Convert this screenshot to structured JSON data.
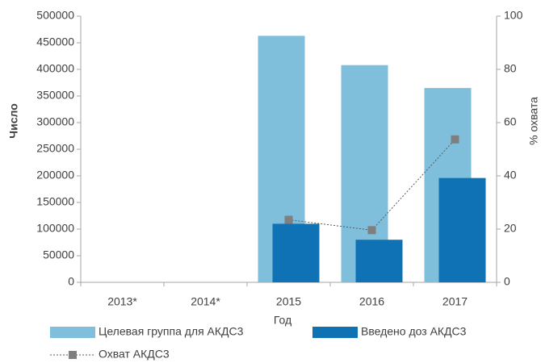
{
  "chart_data": {
    "type": "bar",
    "x_label": "Год",
    "y_label": "Число",
    "y2_label": "% охвата",
    "categories": [
      "2013*",
      "2014*",
      "2015",
      "2016",
      "2017"
    ],
    "series": [
      {
        "name": "Целевая группа для АКДС3",
        "color": "#7fbfdc",
        "values": [
          null,
          null,
          463000,
          408000,
          365000
        ]
      },
      {
        "name": "Введено доз АКДС3",
        "color": "#0e72b5",
        "values": [
          null,
          null,
          110000,
          80000,
          196000
        ]
      },
      {
        "name": "Охват АКДС3",
        "color": "#7f7f7f",
        "type": "line",
        "axis": "y2",
        "values": [
          null,
          null,
          23.5,
          19.6,
          53.7
        ]
      }
    ],
    "ylim": [
      0,
      500000
    ],
    "yticks": [
      0,
      50000,
      100000,
      150000,
      200000,
      250000,
      300000,
      350000,
      400000,
      450000,
      500000
    ],
    "y2lim": [
      0,
      100
    ],
    "y2ticks": [
      0,
      20,
      40,
      60,
      80,
      100
    ]
  }
}
